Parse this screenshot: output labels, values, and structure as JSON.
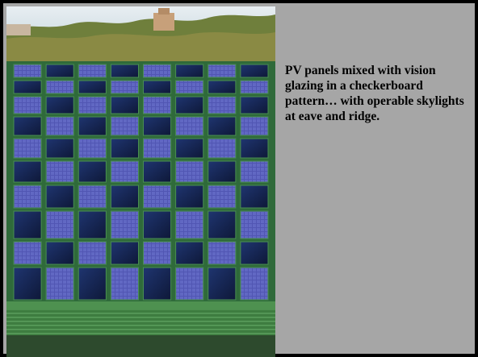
{
  "slide": {
    "photo": {
      "subject": "rooftop-pv-glazing-photo",
      "colors": {
        "sky": "#dfe9ee",
        "roof_green": "#4a8a4a",
        "panel_blue": "#4a4fa8",
        "glass_dark": "#14204a",
        "frame_green": "#3e7b45",
        "trees": "#6b7a3a",
        "building": "#c9a27a"
      }
    },
    "caption": "PV panels mixed with vision glazing in a checkerboard pattern… with operable skylights at eave and ridge."
  }
}
